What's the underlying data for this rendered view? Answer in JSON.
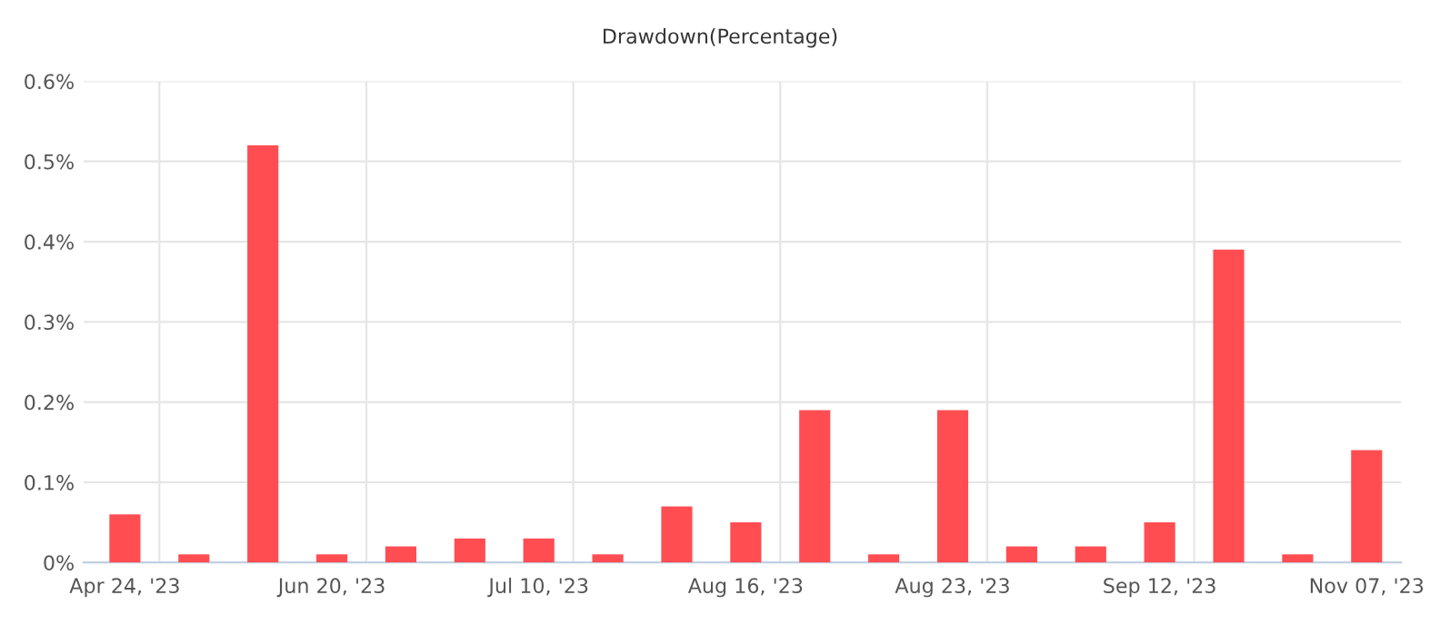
{
  "chart_data": {
    "type": "bar",
    "title": "Drawdown(Percentage)",
    "categories": [
      "Apr 24, '23",
      null,
      null,
      "Jun 20, '23",
      null,
      null,
      "Jul 10, '23",
      null,
      null,
      "Aug 16, '23",
      null,
      null,
      "Aug 23, '23",
      null,
      null,
      "Sep 12, '23",
      null,
      null,
      "Nov 07, '23"
    ],
    "values": [
      0.06,
      0.01,
      0.52,
      0.01,
      0.02,
      0.03,
      0.03,
      0.01,
      0.07,
      0.05,
      0.19,
      0.01,
      0.19,
      0.02,
      0.02,
      0.05,
      0.39,
      0.01,
      0.14
    ],
    "color": "#ff4d52",
    "ylim": [
      0,
      0.6
    ],
    "yticks": [
      {
        "value": 0,
        "label": "0%"
      },
      {
        "value": 0.1,
        "label": "0.1%"
      },
      {
        "value": 0.2,
        "label": "0.2%"
      },
      {
        "value": 0.3,
        "label": "0.3%"
      },
      {
        "value": 0.4,
        "label": "0.4%"
      },
      {
        "value": 0.5,
        "label": "0.5%"
      },
      {
        "value": 0.6,
        "label": "0.6%"
      }
    ],
    "grid": true
  }
}
